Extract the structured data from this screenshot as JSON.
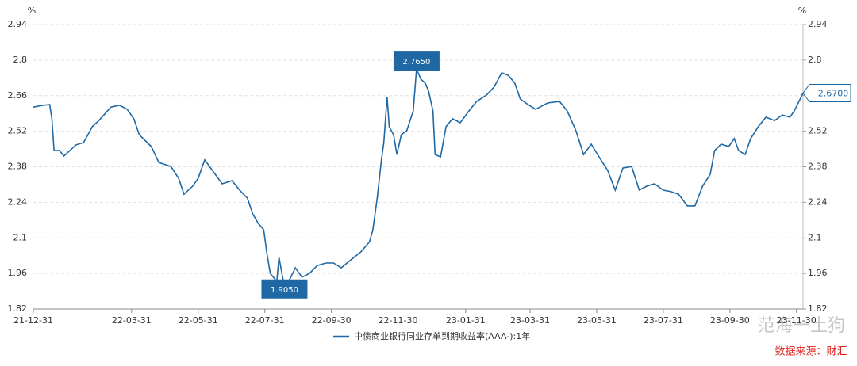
{
  "chart_data": {
    "type": "line",
    "ylabel": "%",
    "y2label": "%",
    "grid": true,
    "legend": "bottom",
    "watermark": "范海一土狗",
    "source": "数据来源：财汇",
    "x": [
      "21-12-31",
      "22-01-09",
      "22-01-15",
      "22-01-17",
      "22-01-19",
      "22-01-24",
      "22-01-28",
      "22-02-08",
      "22-02-15",
      "22-02-23",
      "22-03-01",
      "22-03-12",
      "22-03-20",
      "22-03-27",
      "22-04-02",
      "22-04-07",
      "22-04-18",
      "22-04-25",
      "22-05-06",
      "22-05-13",
      "22-05-18",
      "22-05-26",
      "22-05-31",
      "22-06-06",
      "22-06-13",
      "22-06-22",
      "22-07-01",
      "22-07-08",
      "22-07-15",
      "22-07-20",
      "22-07-25",
      "22-07-30",
      "22-08-02",
      "22-08-05",
      "22-08-11",
      "22-08-13",
      "22-08-18",
      "22-08-23",
      "22-08-28",
      "22-09-03",
      "22-09-10",
      "22-09-17",
      "22-09-25",
      "22-10-02",
      "22-10-09",
      "22-10-16",
      "22-10-27",
      "22-11-04",
      "22-11-07",
      "22-11-11",
      "22-11-15",
      "22-11-17",
      "22-11-20",
      "22-11-22",
      "22-11-26",
      "22-11-29",
      "22-12-03",
      "22-12-08",
      "22-12-14",
      "22-12-17",
      "22-12-21",
      "22-12-25",
      "22-12-28",
      "23-01-01",
      "23-01-03",
      "23-01-08",
      "23-01-13",
      "23-01-19",
      "23-01-26",
      "23-02-03",
      "23-02-10",
      "23-02-19",
      "23-02-26",
      "23-03-05",
      "23-03-11",
      "23-03-17",
      "23-03-22",
      "23-03-27",
      "23-04-05",
      "23-04-16",
      "23-04-27",
      "23-05-04",
      "23-05-12",
      "23-05-19",
      "23-05-26",
      "23-06-03",
      "23-06-10",
      "23-06-17",
      "23-06-24",
      "23-07-02",
      "23-07-09",
      "23-07-16",
      "23-07-23",
      "23-07-31",
      "23-08-07",
      "23-08-14",
      "23-08-22",
      "23-08-29",
      "23-09-05",
      "23-09-12",
      "23-09-16",
      "23-09-22",
      "23-09-29",
      "23-10-04",
      "23-10-08",
      "23-10-14",
      "23-10-19",
      "23-10-26",
      "23-11-02",
      "23-11-10",
      "23-11-17",
      "23-11-24",
      "23-11-28",
      "23-12-06"
    ],
    "series": [
      {
        "name": "中债商业银行同业存单到期收益率(AAA-):1年",
        "color": "#1f68a3",
        "values": [
          2.615,
          2.622,
          2.625,
          2.569,
          2.444,
          2.444,
          2.422,
          2.466,
          2.475,
          2.538,
          2.562,
          2.615,
          2.622,
          2.606,
          2.569,
          2.506,
          2.46,
          2.397,
          2.381,
          2.335,
          2.272,
          2.304,
          2.335,
          2.407,
          2.366,
          2.313,
          2.325,
          2.288,
          2.257,
          2.194,
          2.157,
          2.132,
          2.038,
          1.96,
          1.929,
          2.023,
          1.905,
          1.938,
          1.982,
          1.945,
          1.96,
          1.991,
          2.001,
          2.001,
          1.982,
          2.007,
          2.045,
          2.085,
          2.132,
          2.257,
          2.413,
          2.475,
          2.656,
          2.538,
          2.506,
          2.428,
          2.506,
          2.522,
          2.6,
          2.765,
          2.725,
          2.709,
          2.678,
          2.6,
          2.428,
          2.419,
          2.538,
          2.569,
          2.553,
          2.6,
          2.637,
          2.662,
          2.694,
          2.75,
          2.74,
          2.709,
          2.647,
          2.631,
          2.606,
          2.631,
          2.637,
          2.6,
          2.522,
          2.428,
          2.469,
          2.413,
          2.366,
          2.288,
          2.375,
          2.381,
          2.288,
          2.304,
          2.313,
          2.288,
          2.282,
          2.272,
          2.226,
          2.226,
          2.304,
          2.35,
          2.444,
          2.469,
          2.46,
          2.491,
          2.444,
          2.428,
          2.491,
          2.538,
          2.575,
          2.562,
          2.584,
          2.575,
          2.6,
          2.67
        ]
      }
    ],
    "annotations": [
      {
        "x": "22-12-17",
        "value": 2.765,
        "label": "2.7650",
        "position": "above"
      },
      {
        "x": "22-08-18",
        "value": 1.905,
        "label": "1.9050",
        "position": "below"
      },
      {
        "x": "23-12-06",
        "value": 2.67,
        "label": "2.6700",
        "position": "right"
      }
    ],
    "xlim": [
      "21-12-31",
      "23-12-06"
    ],
    "xticks": [
      "21-12-31",
      "22-03-31",
      "22-05-31",
      "22-07-31",
      "22-09-30",
      "22-11-30",
      "23-01-31",
      "23-03-31",
      "23-05-31",
      "23-07-31",
      "23-09-30",
      "23-11-30"
    ],
    "ylim": [
      1.82,
      2.94
    ],
    "yticks": [
      1.82,
      1.96,
      2.1,
      2.24,
      2.38,
      2.52,
      2.66,
      2.8,
      2.94
    ],
    "y2lim": [
      1.82,
      2.94
    ],
    "y2ticks": [
      1.82,
      1.96,
      2.1,
      2.24,
      2.38,
      2.52,
      2.66,
      2.8,
      2.94
    ]
  }
}
